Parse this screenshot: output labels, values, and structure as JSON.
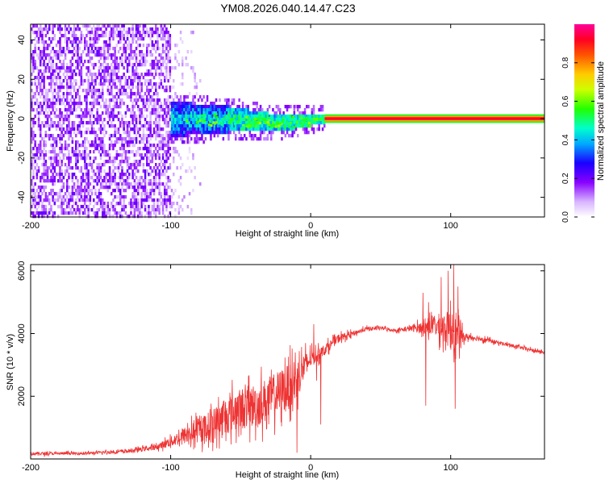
{
  "title": "YM08.2026.040.14.47.C23",
  "chart_data": [
    {
      "type": "heatmap",
      "name": "spectrogram",
      "xlabel": "Height of straight line (km)",
      "ylabel": "Frequency (Hz)",
      "xlim": [
        -200,
        167
      ],
      "ylim": [
        -50,
        48
      ],
      "x_ticks": [
        -200,
        -100,
        0,
        100
      ],
      "x_tick_labels": [
        "-200",
        "-100",
        "0",
        "100"
      ],
      "y_ticks": [
        -40,
        -20,
        0,
        20,
        40
      ],
      "y_tick_labels": [
        "-40",
        "-20",
        "0",
        "20",
        "40"
      ],
      "colorbar": {
        "label": "Normalized spectral amplitude",
        "range": [
          0,
          1
        ],
        "ticks": [
          0,
          0.2,
          0.4,
          0.6,
          0.8
        ],
        "tick_labels": [
          "0.0",
          "0.2",
          "0.4",
          "0.6",
          "0.8"
        ],
        "colormap": [
          "#ffffff",
          "#cc99ff",
          "#7a00ff",
          "#0000ff",
          "#00ffff",
          "#00ff00",
          "#ffff00",
          "#ff8800",
          "#ff0000",
          "#ff00aa"
        ]
      },
      "description_regions": [
        {
          "x_range": [
            -200,
            -100
          ],
          "freq_range": [
            -50,
            48
          ],
          "amplitude": "low (0.1-0.25) scattered noise"
        },
        {
          "x_range": [
            -100,
            0
          ],
          "freq_range": [
            -6,
            6
          ],
          "amplitude": "medium (0.3-0.5) broadening band"
        },
        {
          "x_range": [
            0,
            167
          ],
          "freq_range": [
            -1,
            1
          ],
          "amplitude": "high (~1.0) narrow line near 0 Hz"
        }
      ]
    },
    {
      "type": "line",
      "name": "snr",
      "xlabel": "Height of straight line (km)",
      "ylabel": "SNR (10 * v/v)",
      "xlim": [
        -200,
        167
      ],
      "ylim": [
        0,
        6200
      ],
      "x_ticks": [
        -200,
        -100,
        0,
        100
      ],
      "x_tick_labels": [
        "-200",
        "-100",
        "0",
        "100"
      ],
      "y_ticks": [
        2000,
        4000,
        6000
      ],
      "y_tick_labels": [
        "2000",
        "4000",
        "6000"
      ],
      "color": "#ee3333",
      "envelope": {
        "x": [
          -200,
          -160,
          -130,
          -110,
          -100,
          -90,
          -80,
          -70,
          -60,
          -50,
          -40,
          -30,
          -20,
          -12,
          -5,
          0,
          5,
          10,
          20,
          30,
          40,
          50,
          60,
          70,
          80,
          88,
          95,
          100,
          105,
          110,
          120,
          130,
          140,
          150,
          160,
          167
        ],
        "mean": [
          170,
          180,
          250,
          380,
          550,
          750,
          900,
          1100,
          1400,
          1600,
          1700,
          1900,
          2200,
          2400,
          2900,
          3200,
          3300,
          3500,
          3850,
          4000,
          4150,
          4180,
          4100,
          4150,
          4200,
          4250,
          4200,
          4100,
          3950,
          3900,
          3850,
          3750,
          3650,
          3550,
          3450,
          3400
        ],
        "spread": [
          90,
          80,
          100,
          150,
          300,
          500,
          700,
          900,
          1100,
          1200,
          1300,
          1300,
          1300,
          1300,
          900,
          500,
          400,
          300,
          250,
          150,
          120,
          100,
          100,
          150,
          350,
          600,
          900,
          1100,
          900,
          200,
          150,
          120,
          100,
          100,
          100,
          100
        ]
      },
      "spikes": [
        {
          "x": 2,
          "y": 4300
        },
        {
          "x": 4,
          "y": 2500
        },
        {
          "x": 7,
          "y": 1100
        },
        {
          "x": 80,
          "y": 5300
        },
        {
          "x": 82,
          "y": 1700
        },
        {
          "x": 84,
          "y": 5000
        },
        {
          "x": 93,
          "y": 5800
        },
        {
          "x": 98,
          "y": 6000
        },
        {
          "x": 101,
          "y": 4600
        },
        {
          "x": 102,
          "y": 6200
        },
        {
          "x": 103,
          "y": 1600
        },
        {
          "x": 105,
          "y": 5500
        },
        {
          "x": 106,
          "y": 3200
        },
        {
          "x": -15,
          "y": 3000
        },
        {
          "x": -20,
          "y": 2800
        },
        {
          "x": -10,
          "y": 200
        }
      ]
    }
  ]
}
